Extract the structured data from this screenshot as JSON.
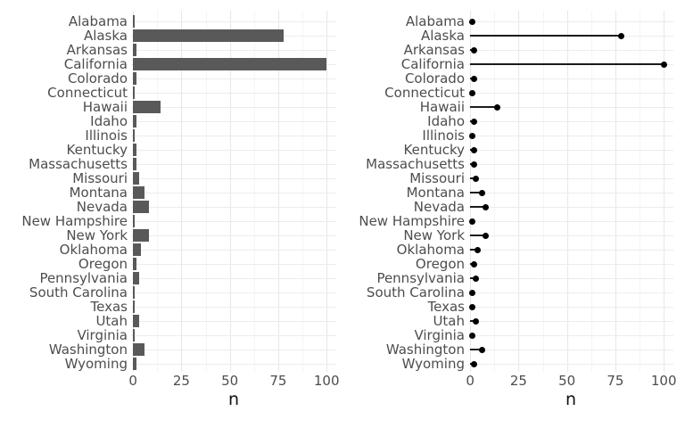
{
  "figure": {
    "background": "#ffffff",
    "panels": [
      "bar-chart",
      "lollipop-chart"
    ]
  },
  "chart_data": [
    {
      "type": "bar",
      "subtype": "horizontal-bar",
      "title": "",
      "categories": [
        "Alabama",
        "Alaska",
        "Arkansas",
        "California",
        "Colorado",
        "Connecticut",
        "Hawaii",
        "Idaho",
        "Illinois",
        "Kentucky",
        "Massachusetts",
        "Missouri",
        "Montana",
        "Nevada",
        "New Hampshire",
        "New York",
        "Oklahoma",
        "Oregon",
        "Pennsylvania",
        "South Carolina",
        "Texas",
        "Utah",
        "Virginia",
        "Washington",
        "Wyoming"
      ],
      "values": [
        1,
        78,
        2,
        100,
        2,
        1,
        14,
        2,
        1,
        2,
        2,
        3,
        6,
        8,
        1,
        8,
        4,
        2,
        3,
        1,
        1,
        3,
        1,
        6,
        2
      ],
      "xlabel": "n",
      "ylabel": "",
      "xlim": [
        0,
        100
      ],
      "x_ticks": [
        0,
        25,
        50,
        75,
        100
      ],
      "grid": "major-and-minor",
      "legend": "none",
      "bar_color": "#595959",
      "axis_text_color": "#4d4d4d",
      "axis_title_color": "#111111"
    },
    {
      "type": "scatter",
      "subtype": "lollipop",
      "title": "",
      "categories": [
        "Alabama",
        "Alaska",
        "Arkansas",
        "California",
        "Colorado",
        "Connecticut",
        "Hawaii",
        "Idaho",
        "Illinois",
        "Kentucky",
        "Massachusetts",
        "Missouri",
        "Montana",
        "Nevada",
        "New Hampshire",
        "New York",
        "Oklahoma",
        "Oregon",
        "Pennsylvania",
        "South Carolina",
        "Texas",
        "Utah",
        "Virginia",
        "Washington",
        "Wyoming"
      ],
      "values": [
        1,
        78,
        2,
        100,
        2,
        1,
        14,
        2,
        1,
        2,
        2,
        3,
        6,
        8,
        1,
        8,
        4,
        2,
        3,
        1,
        1,
        3,
        1,
        6,
        2
      ],
      "xlabel": "n",
      "ylabel": "",
      "xlim": [
        0,
        100
      ],
      "x_ticks": [
        0,
        25,
        50,
        75,
        100
      ],
      "grid": "major-and-minor",
      "legend": "none",
      "dot_color": "#000000",
      "stem_color": "#1b1b1b",
      "axis_text_color": "#4d4d4d",
      "axis_title_color": "#111111"
    }
  ]
}
